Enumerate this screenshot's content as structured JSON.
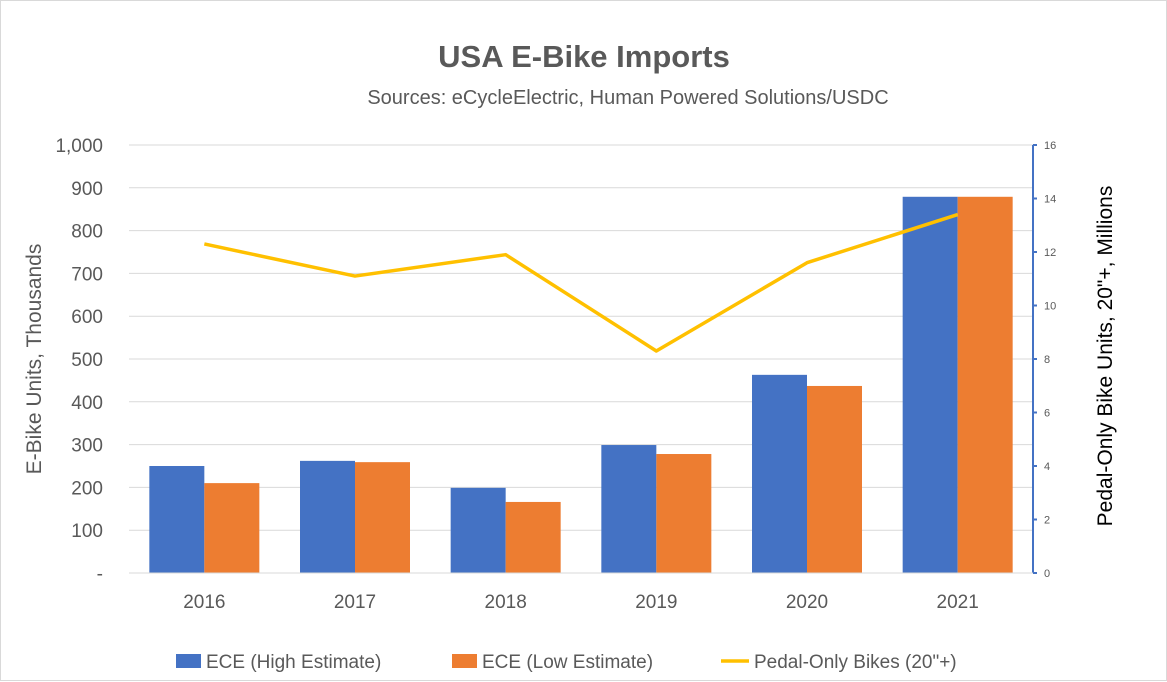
{
  "chart_data": {
    "type": "bar",
    "title": "USA E-Bike Imports",
    "subtitle": "Sources: eCycleElectric, Human Powered Solutions/USDC",
    "categories": [
      "2016",
      "2017",
      "2018",
      "2019",
      "2020",
      "2021"
    ],
    "ylabel": "E-Bike Units, Thousands",
    "ylabel_right": "Pedal-Only Bike Units, 20\"+, Millions",
    "ylim": [
      0,
      1000
    ],
    "ylim_right": [
      0,
      16
    ],
    "yticks": [
      "-",
      "100",
      "200",
      "300",
      "400",
      "500",
      "600",
      "700",
      "800",
      "900",
      "1,000"
    ],
    "yticks_right": [
      "0",
      "2",
      "4",
      "6",
      "8",
      "10",
      "12",
      "14",
      "16"
    ],
    "grid": true,
    "legend_position": "bottom",
    "series": [
      {
        "name": "ECE (High Estimate)",
        "type": "bar",
        "axis": "left",
        "color": "#4472C4",
        "values": [
          250,
          262,
          199,
          299,
          463,
          879
        ]
      },
      {
        "name": "ECE (Low Estimate)",
        "type": "bar",
        "axis": "left",
        "color": "#ED7D31",
        "values": [
          210,
          259,
          166,
          278,
          437,
          879
        ]
      },
      {
        "name": "Pedal-Only Bikes (20\"+)",
        "type": "line",
        "axis": "right",
        "color": "#FFC000",
        "values": [
          12.3,
          11.1,
          11.9,
          8.3,
          11.6,
          13.4
        ]
      }
    ]
  }
}
